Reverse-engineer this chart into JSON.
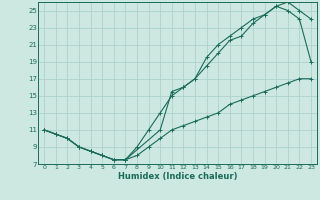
{
  "xlabel": "Humidex (Indice chaleur)",
  "bg_color": "#cce8e0",
  "line_color": "#1a6b5a",
  "grid_color": "#a8cfc8",
  "xlim": [
    -0.5,
    23.5
  ],
  "ylim": [
    7,
    26
  ],
  "xticks": [
    0,
    1,
    2,
    3,
    4,
    5,
    6,
    7,
    8,
    9,
    10,
    11,
    12,
    13,
    14,
    15,
    16,
    17,
    18,
    19,
    20,
    21,
    22,
    23
  ],
  "yticks": [
    7,
    9,
    11,
    13,
    15,
    17,
    19,
    21,
    23,
    25
  ],
  "line1_x": [
    0,
    1,
    2,
    3,
    4,
    5,
    6,
    7,
    8,
    9,
    10,
    11,
    12,
    13,
    14,
    15,
    16,
    17,
    18,
    19,
    20,
    21,
    22,
    23
  ],
  "line1_y": [
    11,
    10.5,
    10,
    9,
    8.5,
    8,
    7.5,
    7.5,
    8,
    9,
    10,
    11,
    11.5,
    12,
    12.5,
    13,
    14,
    14.5,
    15,
    15.5,
    16,
    16.5,
    17,
    17
  ],
  "line2_x": [
    0,
    1,
    2,
    3,
    4,
    5,
    6,
    7,
    8,
    9,
    10,
    11,
    12,
    13,
    14,
    15,
    16,
    17,
    18,
    19,
    20,
    21,
    22,
    23
  ],
  "line2_y": [
    11,
    10.5,
    10,
    9,
    8.5,
    8,
    7.5,
    7.5,
    9,
    11,
    13,
    15,
    16,
    17,
    18.5,
    20,
    21.5,
    22,
    23.5,
    24.5,
    25.5,
    25,
    24,
    19
  ],
  "line3_x": [
    0,
    1,
    2,
    3,
    4,
    5,
    6,
    7,
    10,
    11,
    12,
    13,
    14,
    15,
    16,
    17,
    18,
    19,
    20,
    21,
    22,
    23
  ],
  "line3_y": [
    11,
    10.5,
    10,
    9,
    8.5,
    8,
    7.5,
    7.5,
    11,
    15.5,
    16,
    17,
    19.5,
    21,
    22,
    23,
    24,
    24.5,
    25.5,
    26,
    25,
    24
  ]
}
